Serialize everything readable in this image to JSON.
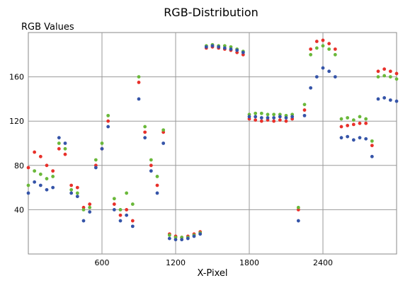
{
  "chart_data": {
    "type": "scatter",
    "title": "RGB-Distribution",
    "xlabel": "X-Pixel",
    "ylabel": "RGB Values",
    "xlim": [
      0,
      3000
    ],
    "ylim": [
      0,
      200
    ],
    "xticks": [
      600,
      1200,
      1800,
      2400
    ],
    "yticks": [
      40,
      80,
      120,
      160
    ],
    "grid": true,
    "series": [
      {
        "color": "#e8302a",
        "x": [
          0,
          50,
          100,
          150,
          200,
          250,
          300,
          350,
          400,
          450,
          500,
          550,
          600,
          650,
          700,
          750,
          800,
          850,
          900,
          950,
          1000,
          1050,
          1100,
          1150,
          1200,
          1250,
          1300,
          1350,
          1400,
          1450,
          1500,
          1550,
          1600,
          1650,
          1700,
          1750,
          1800,
          1850,
          1900,
          1950,
          2000,
          2050,
          2100,
          2150,
          2200,
          2250,
          2300,
          2350,
          2400,
          2450,
          2500,
          2550,
          2600,
          2650,
          2700,
          2750,
          2800,
          2850,
          2900,
          2950,
          3000
        ],
        "values": [
          78,
          92,
          88,
          80,
          75,
          95,
          90,
          62,
          60,
          42,
          45,
          80,
          95,
          120,
          45,
          35,
          40,
          30,
          155,
          110,
          80,
          62,
          110,
          18,
          16,
          15,
          16,
          18,
          20,
          186,
          187,
          186,
          185,
          184,
          182,
          180,
          122,
          121,
          120,
          121,
          120,
          121,
          120,
          122,
          40,
          130,
          185,
          192,
          193,
          190,
          185,
          115,
          116,
          117,
          118,
          118,
          98,
          165,
          167,
          165,
          163
        ]
      },
      {
        "color": "#6ab83a",
        "x": [
          0,
          50,
          100,
          150,
          200,
          250,
          300,
          350,
          400,
          450,
          500,
          550,
          600,
          650,
          700,
          750,
          800,
          850,
          900,
          950,
          1000,
          1050,
          1100,
          1150,
          1200,
          1250,
          1300,
          1350,
          1400,
          1450,
          1500,
          1550,
          1600,
          1650,
          1700,
          1750,
          1800,
          1850,
          1900,
          1950,
          2000,
          2050,
          2100,
          2150,
          2200,
          2250,
          2300,
          2350,
          2400,
          2450,
          2500,
          2550,
          2600,
          2650,
          2700,
          2750,
          2800,
          2850,
          2900,
          2950,
          3000
        ],
        "values": [
          62,
          75,
          72,
          68,
          70,
          100,
          95,
          58,
          55,
          40,
          42,
          85,
          100,
          125,
          50,
          40,
          55,
          45,
          160,
          115,
          85,
          70,
          112,
          17,
          15,
          15,
          15,
          17,
          19,
          188,
          189,
          188,
          188,
          187,
          185,
          183,
          126,
          127,
          127,
          126,
          126,
          126,
          125,
          126,
          42,
          135,
          180,
          186,
          188,
          185,
          180,
          122,
          123,
          121,
          124,
          122,
          102,
          160,
          161,
          160,
          158
        ]
      },
      {
        "color": "#3554a8",
        "x": [
          0,
          50,
          100,
          150,
          200,
          250,
          300,
          350,
          400,
          450,
          500,
          550,
          600,
          650,
          700,
          750,
          800,
          850,
          900,
          950,
          1000,
          1050,
          1100,
          1150,
          1200,
          1250,
          1300,
          1350,
          1400,
          1450,
          1500,
          1550,
          1600,
          1650,
          1700,
          1750,
          1800,
          1850,
          1900,
          1950,
          2000,
          2050,
          2100,
          2150,
          2200,
          2250,
          2300,
          2350,
          2400,
          2450,
          2500,
          2550,
          2600,
          2650,
          2700,
          2750,
          2800,
          2850,
          2900,
          2950,
          3000
        ],
        "values": [
          55,
          65,
          62,
          58,
          60,
          105,
          100,
          55,
          52,
          30,
          38,
          78,
          95,
          115,
          40,
          30,
          35,
          25,
          140,
          105,
          75,
          55,
          100,
          14,
          13,
          13,
          14,
          16,
          18,
          187,
          188,
          187,
          186,
          185,
          184,
          182,
          124,
          124,
          123,
          123,
          123,
          124,
          123,
          124,
          30,
          125,
          150,
          160,
          168,
          165,
          160,
          105,
          106,
          103,
          105,
          104,
          88,
          140,
          141,
          139,
          138
        ]
      }
    ]
  }
}
